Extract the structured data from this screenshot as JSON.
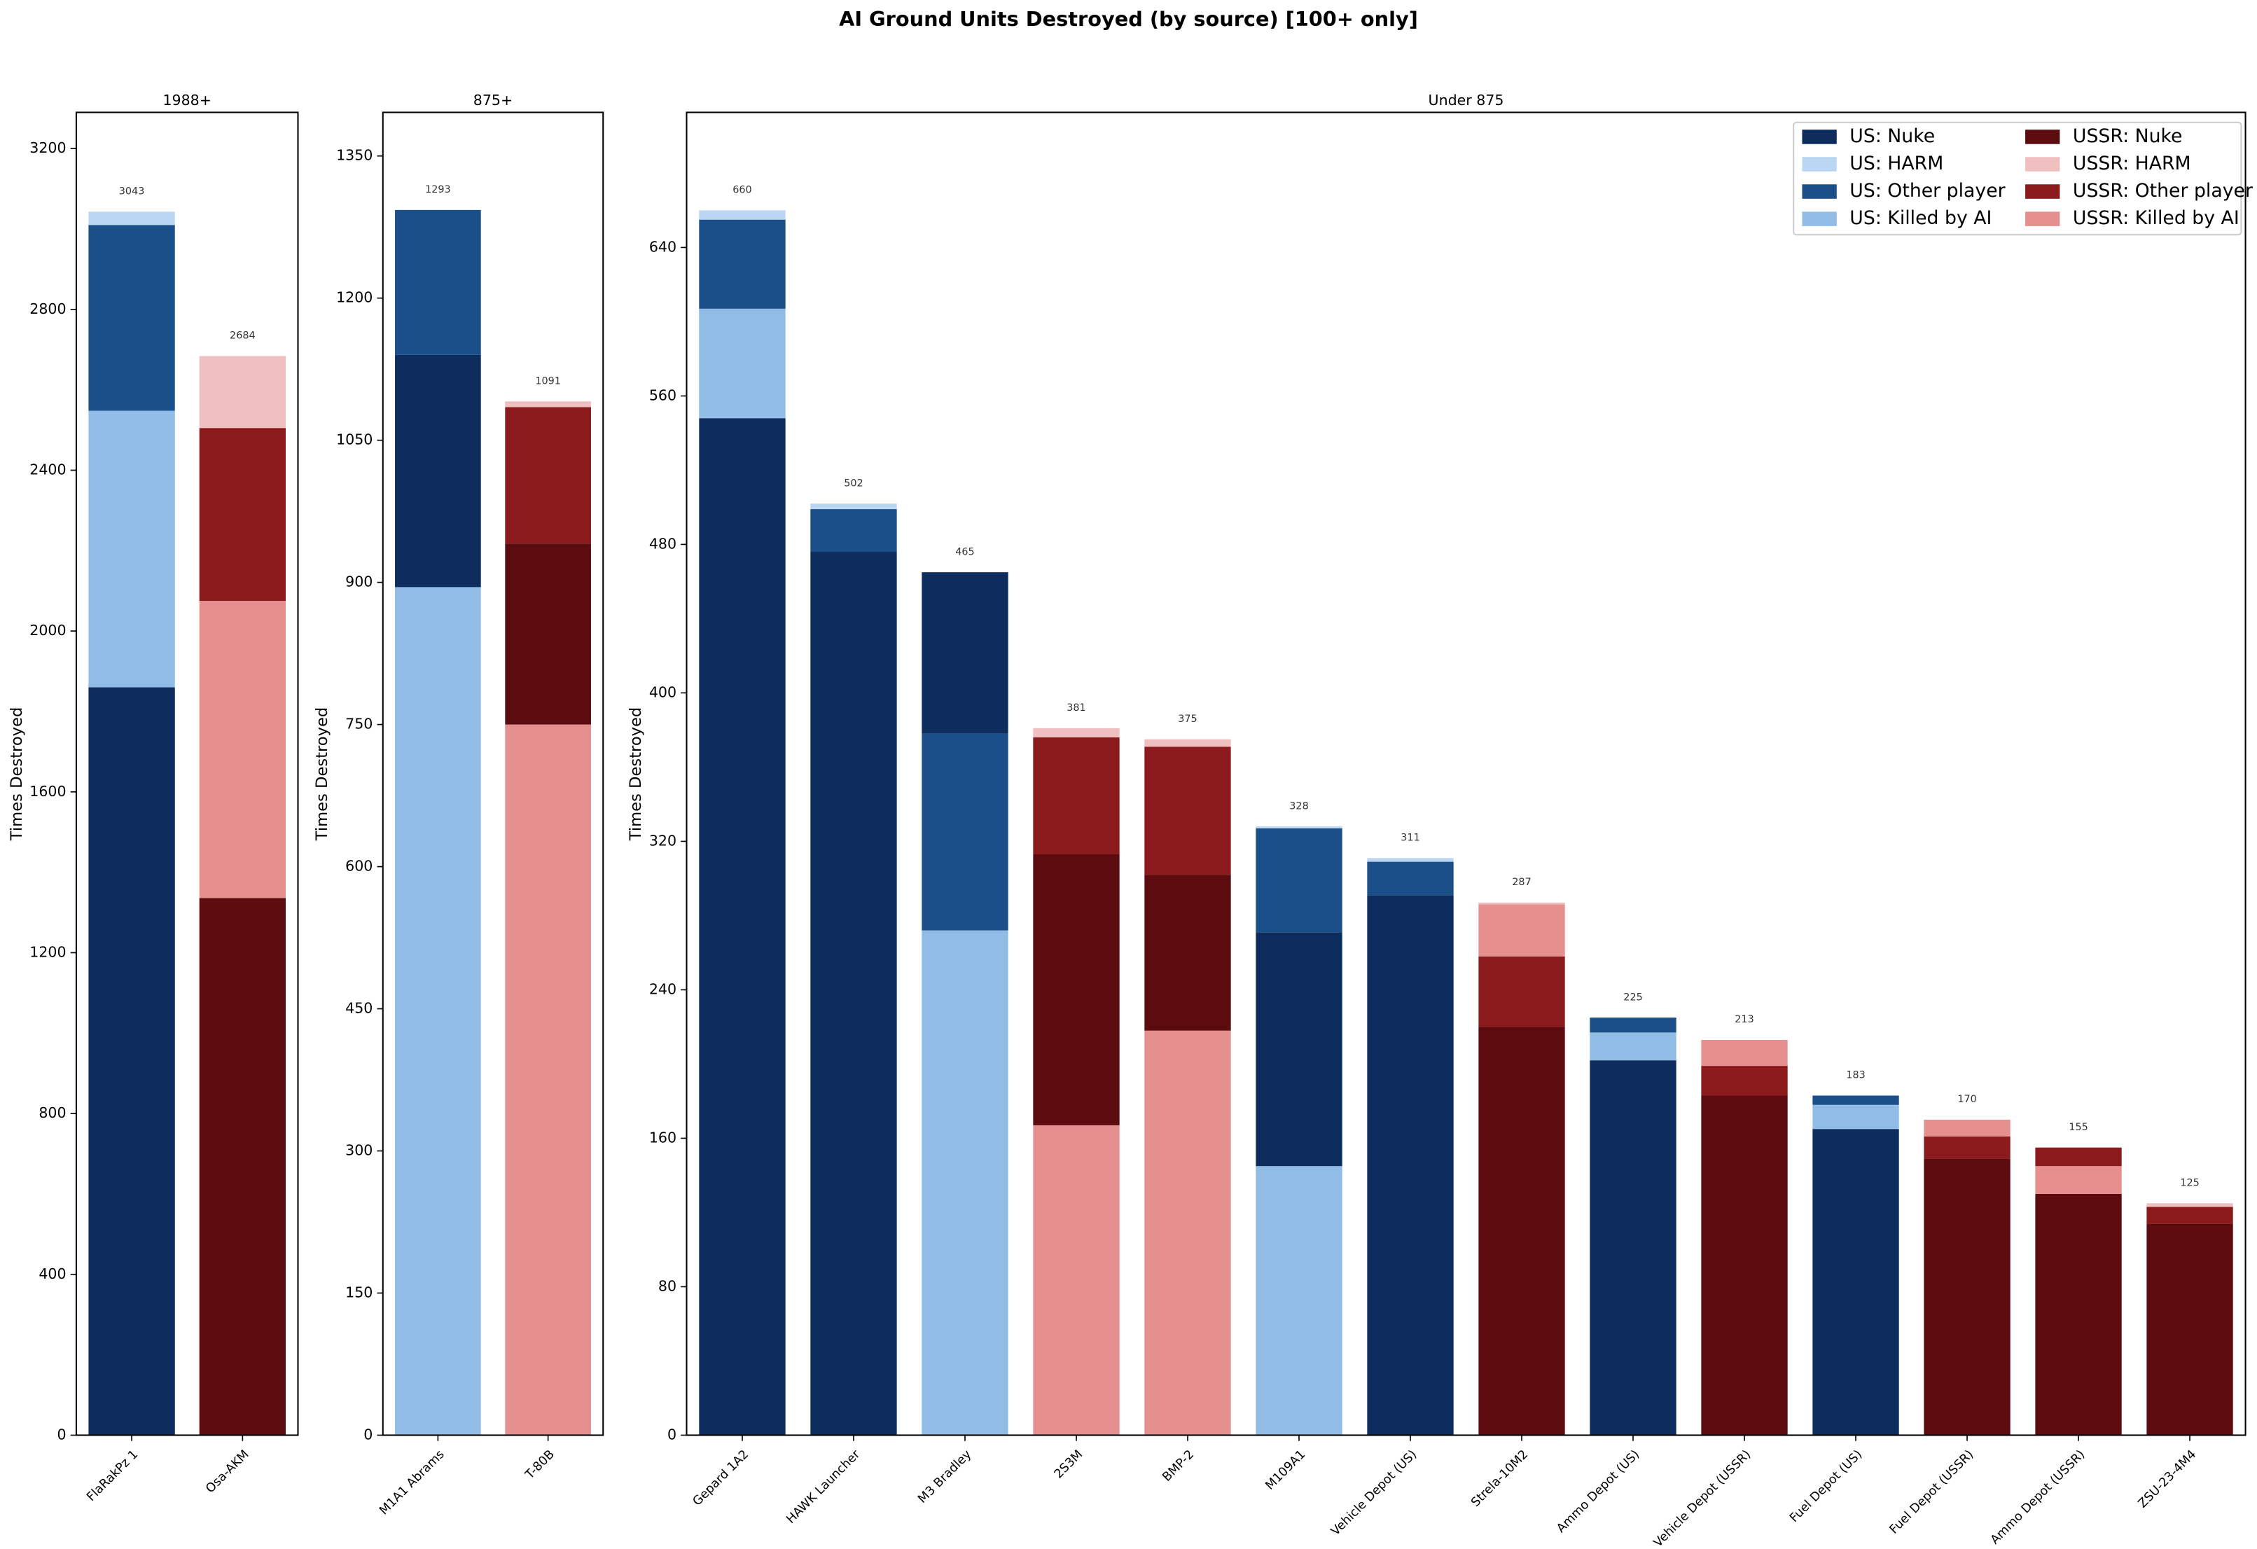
{
  "title": "AI Ground Units Destroyed (by source) [100+ only]",
  "chart_data": [
    {
      "type": "bar",
      "stacked": true,
      "title": "1988+",
      "ylabel": "Times Destroyed",
      "categories": [
        "FlaRakPz 1",
        "Osa-AKM"
      ],
      "totals": [
        3043,
        2684
      ],
      "series": [
        {
          "name": "US: Nuke",
          "color": "#0d2d5e",
          "values": [
            1860,
            null
          ]
        },
        {
          "name": "US: HARM",
          "color": "#bad6f2",
          "values": [
            33,
            null
          ]
        },
        {
          "name": "US: Other player",
          "color": "#1b4f8a",
          "values": [
            462,
            null
          ]
        },
        {
          "name": "US: Killed by AI",
          "color": "#90bce6",
          "values": [
            688,
            null
          ]
        },
        {
          "name": "USSR: Nuke",
          "color": "#5c0c0f",
          "values": [
            null,
            1336
          ]
        },
        {
          "name": "USSR: HARM",
          "color": "#f0bfc0",
          "values": [
            null,
            179
          ]
        },
        {
          "name": "USSR: Other player",
          "color": "#8b1a1c",
          "values": [
            null,
            430
          ]
        },
        {
          "name": "USSR: Killed by AI",
          "color": "#e58f8f",
          "values": [
            null,
            739
          ]
        }
      ],
      "ylim": [
        0,
        3290
      ],
      "yticks": [
        0,
        400,
        800,
        1200,
        1600,
        2000,
        2400,
        2800,
        3200
      ]
    },
    {
      "type": "bar",
      "stacked": true,
      "title": "875+",
      "ylabel": "Times Destroyed",
      "categories": [
        "M1A1 Abrams",
        "T-80B"
      ],
      "totals": [
        1293,
        1091
      ],
      "series": [
        {
          "name": "US: Nuke",
          "color": "#0d2d5e",
          "values": [
            245,
            null
          ]
        },
        {
          "name": "US: HARM",
          "color": "#bad6f2",
          "values": [
            0,
            null
          ]
        },
        {
          "name": "US: Other player",
          "color": "#1b4f8a",
          "values": [
            153,
            null
          ]
        },
        {
          "name": "US: Killed by AI",
          "color": "#90bce6",
          "values": [
            895,
            null
          ]
        },
        {
          "name": "USSR: Nuke",
          "color": "#5c0c0f",
          "values": [
            null,
            191
          ]
        },
        {
          "name": "USSR: HARM",
          "color": "#f0bfc0",
          "values": [
            null,
            6
          ]
        },
        {
          "name": "USSR: Other player",
          "color": "#8b1a1c",
          "values": [
            null,
            144
          ]
        },
        {
          "name": "USSR: Killed by AI",
          "color": "#e58f8f",
          "values": [
            null,
            750
          ]
        }
      ],
      "ylim": [
        0,
        1396
      ],
      "yticks": [
        0,
        150,
        300,
        450,
        600,
        750,
        900,
        1050,
        1200,
        1350
      ]
    },
    {
      "type": "bar",
      "stacked": true,
      "title": "Under 875",
      "ylabel": "Times Destroyed",
      "categories": [
        "Gepard 1A2",
        "HAWK Launcher",
        "M3 Bradley",
        "2S3M",
        "BMP-2",
        "M109A1",
        "Vehicle Depot (US)",
        "Strela-10M2",
        "Ammo Depot (US)",
        "Vehicle Depot (USSR)",
        "Fuel Depot (US)",
        "Fuel Depot (USSR)",
        "Ammo Depot (USSR)",
        "ZSU-23-4M4"
      ],
      "totals": [
        660,
        502,
        465,
        381,
        375,
        328,
        311,
        287,
        225,
        213,
        183,
        170,
        155,
        125
      ],
      "series": [
        {
          "name": "US: Nuke",
          "color": "#0d2d5e",
          "values": [
            548,
            476,
            87,
            null,
            null,
            126,
            291,
            null,
            202,
            null,
            165,
            null,
            null,
            null
          ]
        },
        {
          "name": "US: HARM",
          "color": "#bad6f2",
          "values": [
            5,
            3,
            0,
            null,
            null,
            1,
            2,
            null,
            0,
            null,
            0,
            null,
            null,
            null
          ]
        },
        {
          "name": "US: Other player",
          "color": "#1b4f8a",
          "values": [
            48,
            23,
            106,
            null,
            null,
            56,
            18,
            null,
            8,
            null,
            5,
            null,
            null,
            null
          ]
        },
        {
          "name": "US: Killed by AI",
          "color": "#90bce6",
          "values": [
            59,
            0,
            272,
            null,
            null,
            145,
            0,
            null,
            15,
            null,
            13,
            null,
            null,
            null
          ]
        },
        {
          "name": "USSR: Nuke",
          "color": "#5c0c0f",
          "values": [
            null,
            null,
            null,
            146,
            84,
            null,
            null,
            220,
            null,
            183,
            null,
            149,
            130,
            114
          ]
        },
        {
          "name": "USSR: HARM",
          "color": "#f0bfc0",
          "values": [
            null,
            null,
            null,
            5,
            4,
            null,
            null,
            1,
            null,
            0,
            null,
            0,
            0,
            2
          ]
        },
        {
          "name": "USSR: Other player",
          "color": "#8b1a1c",
          "values": [
            null,
            null,
            null,
            63,
            69,
            null,
            null,
            38,
            null,
            16,
            null,
            12,
            10,
            9
          ]
        },
        {
          "name": "USSR: Killed by AI",
          "color": "#e58f8f",
          "values": [
            null,
            null,
            null,
            167,
            218,
            null,
            null,
            28,
            null,
            14,
            null,
            9,
            15,
            0
          ]
        }
      ],
      "ylim": [
        0,
        712.8
      ],
      "yticks": [
        0,
        80,
        160,
        240,
        320,
        400,
        480,
        560,
        640
      ],
      "legend": "upper right"
    }
  ]
}
